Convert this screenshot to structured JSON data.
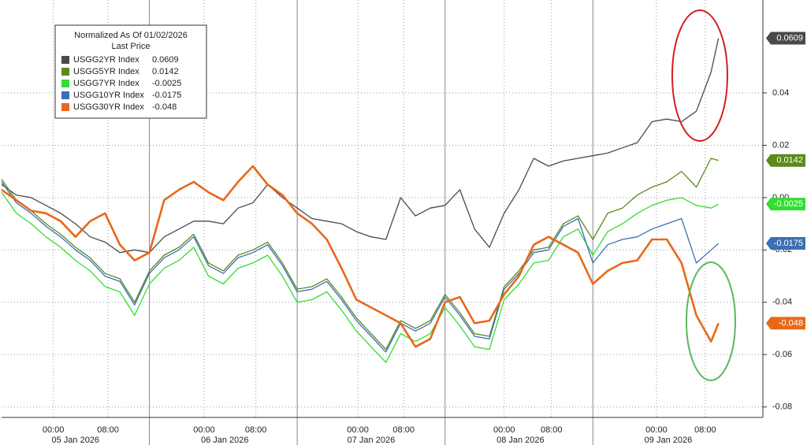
{
  "chart_data": {
    "type": "line",
    "legend_title": "Normalized As Of 01/02/2026",
    "legend_subtitle": "Last Price",
    "x": [
      0,
      0.1,
      0.2,
      0.3,
      0.4,
      0.5,
      0.6,
      0.7,
      0.8,
      0.9,
      1,
      1.1,
      1.2,
      1.3,
      1.4,
      1.5,
      1.6,
      1.7,
      1.8,
      1.9,
      2,
      2.1,
      2.2,
      2.3,
      2.4,
      2.5,
      2.6,
      2.7,
      2.8,
      2.9,
      3,
      3.1,
      3.2,
      3.3,
      3.4,
      3.5,
      3.6,
      3.7,
      3.8,
      3.9,
      4,
      4.1,
      4.2,
      4.3,
      4.4,
      4.5,
      4.6,
      4.7,
      4.8,
      4.85
    ],
    "series": [
      {
        "name": "USGG2YR Index",
        "color": "#4a4a4a",
        "values": [
          0.005,
          0.001,
          0,
          -0.003,
          -0.006,
          -0.01,
          -0.015,
          -0.017,
          -0.021,
          -0.02,
          -0.021,
          -0.015,
          -0.012,
          -0.009,
          -0.009,
          -0.01,
          -0.004,
          -0.002,
          0.005,
          0,
          -0.004,
          -0.008,
          -0.009,
          -0.01,
          -0.013,
          -0.015,
          -0.016,
          0,
          -0.007,
          -0.004,
          -0.003,
          0.003,
          -0.012,
          -0.019,
          -0.006,
          0.003,
          0.015,
          0.012,
          0.014,
          0.015,
          0.016,
          0.017,
          0.019,
          0.021,
          0.029,
          0.03,
          0.029,
          0.033,
          0.048,
          0.0609
        ]
      },
      {
        "name": "USGG5YR Index",
        "color": "#5a8a1a",
        "values": [
          0.007,
          -0.001,
          -0.005,
          -0.01,
          -0.014,
          -0.019,
          -0.023,
          -0.029,
          -0.031,
          -0.04,
          -0.028,
          -0.022,
          -0.019,
          -0.014,
          -0.025,
          -0.028,
          -0.022,
          -0.02,
          -0.017,
          -0.025,
          -0.035,
          -0.034,
          -0.031,
          -0.038,
          -0.046,
          -0.052,
          -0.058,
          -0.047,
          -0.05,
          -0.047,
          -0.037,
          -0.044,
          -0.052,
          -0.053,
          -0.034,
          -0.028,
          -0.02,
          -0.019,
          -0.01,
          -0.007,
          -0.016,
          -0.006,
          -0.004,
          0.001,
          0.004,
          0.006,
          0.01,
          0.004,
          0.015,
          0.0142
        ]
      },
      {
        "name": "USGG7YR Index",
        "color": "#33dd33",
        "values": [
          0.002,
          -0.006,
          -0.01,
          -0.015,
          -0.019,
          -0.024,
          -0.028,
          -0.034,
          -0.036,
          -0.045,
          -0.033,
          -0.027,
          -0.024,
          -0.019,
          -0.03,
          -0.033,
          -0.027,
          -0.025,
          -0.022,
          -0.03,
          -0.04,
          -0.039,
          -0.036,
          -0.043,
          -0.051,
          -0.057,
          -0.063,
          -0.052,
          -0.055,
          -0.052,
          -0.042,
          -0.049,
          -0.057,
          -0.058,
          -0.039,
          -0.033,
          -0.025,
          -0.024,
          -0.015,
          -0.012,
          -0.022,
          -0.013,
          -0.01,
          -0.006,
          -0.003,
          -0.001,
          0,
          -0.003,
          -0.004,
          -0.0025
        ]
      },
      {
        "name": "USGG10YR Index",
        "color": "#3b6fb6",
        "values": [
          0.006,
          -0.002,
          -0.006,
          -0.011,
          -0.015,
          -0.02,
          -0.024,
          -0.03,
          -0.032,
          -0.041,
          -0.029,
          -0.023,
          -0.02,
          -0.015,
          -0.026,
          -0.029,
          -0.023,
          -0.021,
          -0.018,
          -0.026,
          -0.036,
          -0.035,
          -0.032,
          -0.039,
          -0.047,
          -0.053,
          -0.059,
          -0.048,
          -0.051,
          -0.048,
          -0.038,
          -0.045,
          -0.053,
          -0.054,
          -0.035,
          -0.029,
          -0.021,
          -0.02,
          -0.011,
          -0.008,
          -0.025,
          -0.018,
          -0.016,
          -0.015,
          -0.012,
          -0.01,
          -0.008,
          -0.025,
          -0.02,
          -0.0175
        ]
      },
      {
        "name": "USGG30YR Index",
        "color": "#e8681a",
        "values": [
          0.003,
          -0.001,
          -0.005,
          -0.006,
          -0.009,
          -0.015,
          -0.009,
          -0.006,
          -0.018,
          -0.024,
          -0.021,
          -0.001,
          0.003,
          0.006,
          0.002,
          -0.001,
          0.006,
          0.012,
          0.005,
          0.001,
          -0.006,
          -0.01,
          -0.016,
          -0.027,
          -0.039,
          -0.042,
          -0.045,
          -0.048,
          -0.057,
          -0.054,
          -0.04,
          -0.038,
          -0.048,
          -0.047,
          -0.037,
          -0.03,
          -0.018,
          -0.015,
          -0.018,
          -0.021,
          -0.033,
          -0.028,
          -0.025,
          -0.024,
          -0.016,
          -0.016,
          -0.025,
          -0.045,
          -0.055,
          -0.048
        ]
      }
    ],
    "xlim": [
      0,
      5.15
    ],
    "xticks": [
      {
        "value": 0.35,
        "label": "00:00"
      },
      {
        "value": 0.72,
        "label": "08:00"
      },
      {
        "value": 1.37,
        "label": "00:00"
      },
      {
        "value": 1.72,
        "label": "08:00"
      },
      {
        "value": 2.41,
        "label": "00:00"
      },
      {
        "value": 2.72,
        "label": "08:00"
      },
      {
        "value": 3.4,
        "label": "00:00"
      },
      {
        "value": 3.72,
        "label": "08:00"
      },
      {
        "value": 4.43,
        "label": "00:00"
      },
      {
        "value": 4.76,
        "label": "08:00"
      }
    ],
    "date_ticks": [
      {
        "value": 0.5,
        "label": "05 Jan 2026"
      },
      {
        "value": 1.51,
        "label": "06 Jan 2026"
      },
      {
        "value": 2.5,
        "label": "07 Jan 2026"
      },
      {
        "value": 3.51,
        "label": "08 Jan 2026"
      },
      {
        "value": 4.51,
        "label": "09 Jan 2026"
      }
    ],
    "day_breaks": [
      1,
      2,
      3,
      4
    ],
    "ylim": [
      -0.084,
      0.0755
    ],
    "yticks": [
      -0.08,
      -0.06,
      -0.04,
      -0.02,
      {
        "value": 0,
        "label": "0.00"
      },
      0.02,
      0.04
    ],
    "grid": true
  }
}
